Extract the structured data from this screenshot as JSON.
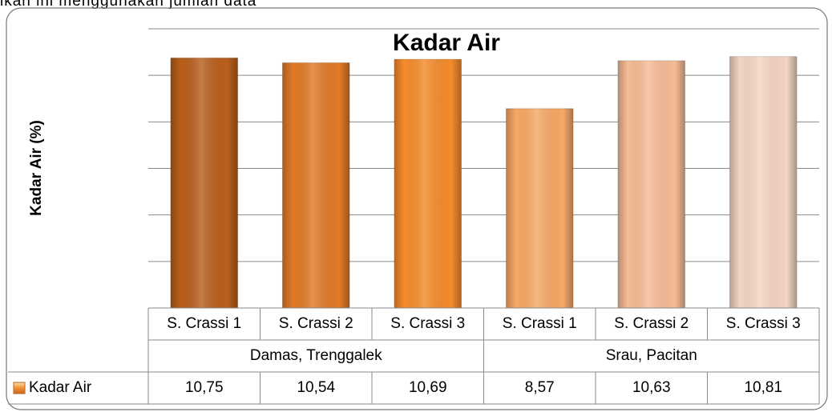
{
  "page_text": "ikan ini menggunakan jumlah data",
  "chart_data": {
    "type": "bar",
    "title": "Kadar Air",
    "y_label": "Kadar Air (%)",
    "categories": [
      "S. Crassi 1",
      "S. Crassi 2",
      "S. Crassi 3",
      "S. Crassi 1",
      "S. Crassi 2",
      "S. Crassi 3"
    ],
    "groups": [
      "Damas, Trenggalek",
      "Srau, Pacitan"
    ],
    "series": [
      {
        "name": "Kadar Air",
        "color": "#f0902f",
        "values": [
          10.75,
          10.54,
          10.69,
          8.57,
          10.63,
          10.81
        ],
        "value_labels": [
          "10,75",
          "10,54",
          "10,69",
          "8,57",
          "10,63",
          "10,81"
        ],
        "colors": [
          "#b95f1c",
          "#e17a27",
          "#f58c2c",
          "#f7a867",
          "#f6bc96",
          "#f5d5c3"
        ]
      }
    ],
    "ylim": [
      0,
      12
    ],
    "yticks": [
      0,
      2,
      4,
      6,
      8,
      10,
      12
    ],
    "grid": true
  }
}
